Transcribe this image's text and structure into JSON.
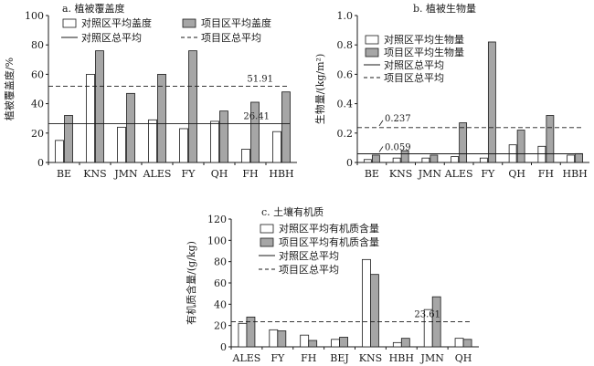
{
  "colors": {
    "control_fill": "#ffffff",
    "project_fill": "#a6a6a6",
    "stroke": "#1a1a1a"
  },
  "chart_data": [
    {
      "type": "bar",
      "title": "a. 植被覆盖度",
      "ylabel": "植被覆盖度/%",
      "ylim": [
        0,
        100
      ],
      "yticks": [
        "0",
        "20",
        "40",
        "60",
        "80",
        "100"
      ],
      "categories": [
        "BE",
        "KNS",
        "JMN",
        "ALES",
        "FY",
        "QH",
        "FH",
        "HBH"
      ],
      "series": [
        {
          "name": "对照区平均盖度",
          "values": [
            15,
            60,
            24,
            29,
            23,
            28,
            9,
            21
          ]
        },
        {
          "name": "项目区平均盖度",
          "values": [
            32,
            76,
            47,
            60,
            76,
            35,
            41,
            48
          ]
        }
      ],
      "lines": [
        {
          "name": "对照区总平均",
          "value": 26.41,
          "label": "26.41",
          "style": "solid"
        },
        {
          "name": "项目区总平均",
          "value": 51.91,
          "label": "51.91",
          "style": "dashed"
        }
      ],
      "legend": "top"
    },
    {
      "type": "bar",
      "title": "b. 植被生物量",
      "ylabel": "生物量/(kg/m²)",
      "ylim": [
        0,
        1.0
      ],
      "yticks": [
        "0",
        "0.2",
        "0.4",
        "0.6",
        "0.8",
        "1.0"
      ],
      "categories": [
        "BE",
        "KNS",
        "JMN",
        "ALES",
        "FY",
        "QH",
        "FH",
        "HBH"
      ],
      "series": [
        {
          "name": "对照区平均生物量",
          "values": [
            0.02,
            0.03,
            0.03,
            0.04,
            0.03,
            0.12,
            0.11,
            0.05
          ]
        },
        {
          "name": "项目区平均生物量",
          "values": [
            0.05,
            0.08,
            0.05,
            0.27,
            0.82,
            0.22,
            0.32,
            0.06
          ]
        }
      ],
      "lines": [
        {
          "name": "对照区总平均",
          "value": 0.059,
          "label": "0.059",
          "style": "solid"
        },
        {
          "name": "项目区总平均",
          "value": 0.237,
          "label": "0.237",
          "style": "dashed"
        }
      ],
      "legend": "top-left"
    },
    {
      "type": "bar",
      "title": "c. 土壤有机质",
      "ylabel": "有机质含量/(g/kg)",
      "ylim": [
        0,
        120
      ],
      "yticks": [
        "0",
        "20",
        "40",
        "60",
        "80",
        "100",
        "120"
      ],
      "categories": [
        "ALES",
        "FY",
        "FH",
        "BEJ",
        "KNS",
        "HBH",
        "JMN",
        "QH"
      ],
      "series": [
        {
          "name": "对照区平均有机质含量",
          "values": [
            22,
            16,
            11,
            7,
            82,
            4,
            35,
            8
          ]
        },
        {
          "name": "项目区平均有机质含量",
          "values": [
            28,
            15,
            6,
            9,
            68,
            8,
            47,
            7
          ]
        }
      ],
      "lines": [
        {
          "name": "对照区总平均",
          "value": null,
          "label": "",
          "style": "solid"
        },
        {
          "name": "项目区总平均",
          "value": 23.61,
          "label": "23.61",
          "style": "dashed"
        }
      ],
      "legend": "top-left"
    }
  ]
}
